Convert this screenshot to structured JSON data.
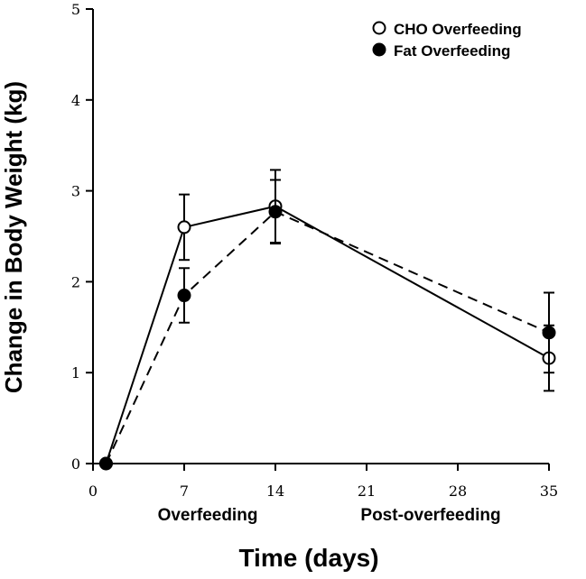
{
  "chart_data": {
    "type": "line",
    "xlabel": "Time (days)",
    "ylabel": "Change in Body Weight (kg)",
    "xlim": [
      0,
      35
    ],
    "ylim": [
      0,
      5
    ],
    "x_ticks": [
      "0",
      "7",
      "14",
      "21",
      "28",
      "35"
    ],
    "y_ticks": [
      "0",
      "1",
      "2",
      "3",
      "4",
      "5"
    ],
    "phase_labels": [
      "Overfeeding",
      "Post-overfeeding"
    ],
    "grid": false,
    "legend_position": "top-right",
    "series": [
      {
        "name": "CHO Overfeeding",
        "marker": "open-circle",
        "line_style": "solid",
        "x": [
          1,
          7,
          14,
          35
        ],
        "y": [
          0,
          2.6,
          2.83,
          1.16
        ],
        "error": [
          0,
          0.36,
          0.4,
          0.36
        ]
      },
      {
        "name": "Fat Overfeeding",
        "marker": "filled-circle",
        "line_style": "dashed",
        "x": [
          1,
          7,
          14,
          35
        ],
        "y": [
          0,
          1.85,
          2.77,
          1.44
        ],
        "error": [
          0,
          0.3,
          0.35,
          0.44
        ]
      }
    ]
  }
}
